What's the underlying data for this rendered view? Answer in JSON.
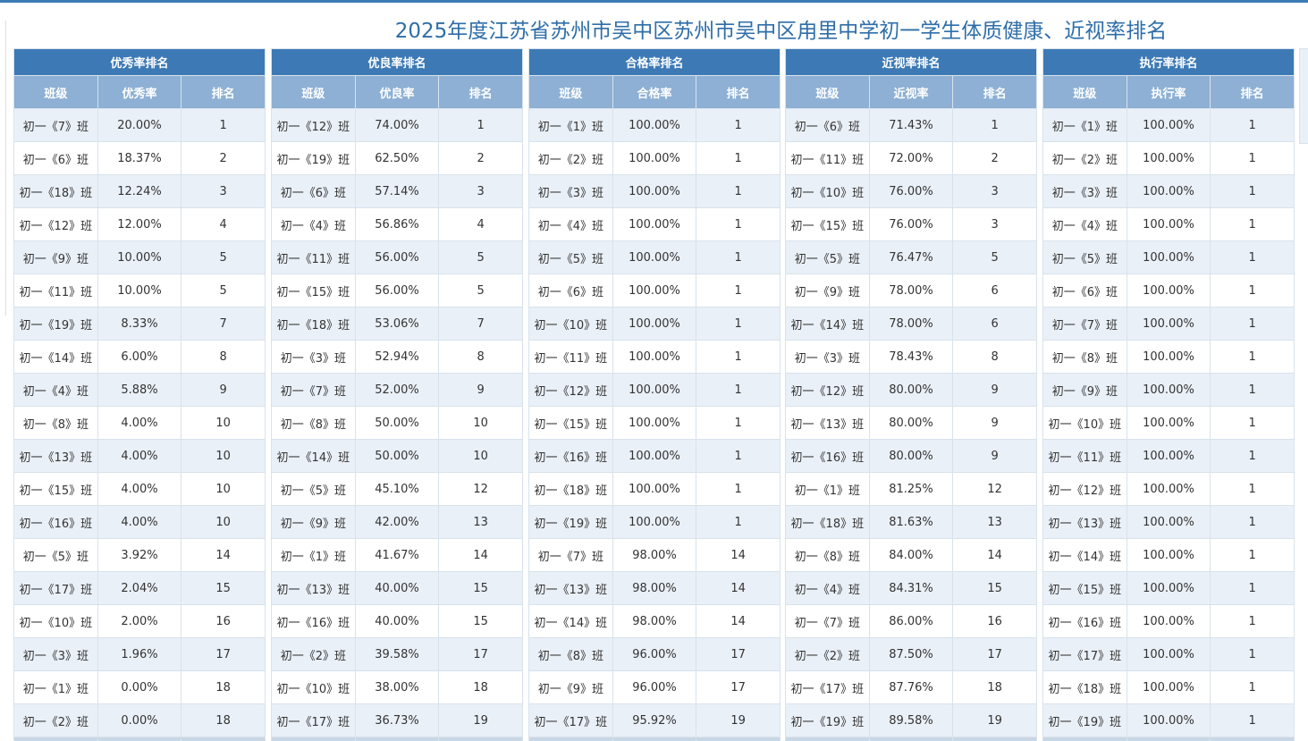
{
  "title": "2025年度江苏省苏州市吴中区苏州市吴中区甪里中学初一学生体质健康、近视率排名",
  "tables": [
    {
      "title": "优秀率排名",
      "headers": [
        "班级",
        "优秀率",
        "排名"
      ],
      "rows": [
        [
          "初一《7》班",
          "20.00%",
          "1"
        ],
        [
          "初一《6》班",
          "18.37%",
          "2"
        ],
        [
          "初一《18》班",
          "12.24%",
          "3"
        ],
        [
          "初一《12》班",
          "12.00%",
          "4"
        ],
        [
          "初一《9》班",
          "10.00%",
          "5"
        ],
        [
          "初一《11》班",
          "10.00%",
          "5"
        ],
        [
          "初一《19》班",
          "8.33%",
          "7"
        ],
        [
          "初一《14》班",
          "6.00%",
          "8"
        ],
        [
          "初一《4》班",
          "5.88%",
          "9"
        ],
        [
          "初一《8》班",
          "4.00%",
          "10"
        ],
        [
          "初一《13》班",
          "4.00%",
          "10"
        ],
        [
          "初一《15》班",
          "4.00%",
          "10"
        ],
        [
          "初一《16》班",
          "4.00%",
          "10"
        ],
        [
          "初一《5》班",
          "3.92%",
          "14"
        ],
        [
          "初一《17》班",
          "2.04%",
          "15"
        ],
        [
          "初一《10》班",
          "2.00%",
          "16"
        ],
        [
          "初一《3》班",
          "1.96%",
          "17"
        ],
        [
          "初一《1》班",
          "0.00%",
          "18"
        ],
        [
          "初一《2》班",
          "0.00%",
          "18"
        ]
      ]
    },
    {
      "title": "优良率排名",
      "headers": [
        "班级",
        "优良率",
        "排名"
      ],
      "rows": [
        [
          "初一《12》班",
          "74.00%",
          "1"
        ],
        [
          "初一《19》班",
          "62.50%",
          "2"
        ],
        [
          "初一《6》班",
          "57.14%",
          "3"
        ],
        [
          "初一《4》班",
          "56.86%",
          "4"
        ],
        [
          "初一《11》班",
          "56.00%",
          "5"
        ],
        [
          "初一《15》班",
          "56.00%",
          "5"
        ],
        [
          "初一《18》班",
          "53.06%",
          "7"
        ],
        [
          "初一《3》班",
          "52.94%",
          "8"
        ],
        [
          "初一《7》班",
          "52.00%",
          "9"
        ],
        [
          "初一《8》班",
          "50.00%",
          "10"
        ],
        [
          "初一《14》班",
          "50.00%",
          "10"
        ],
        [
          "初一《5》班",
          "45.10%",
          "12"
        ],
        [
          "初一《9》班",
          "42.00%",
          "13"
        ],
        [
          "初一《1》班",
          "41.67%",
          "14"
        ],
        [
          "初一《13》班",
          "40.00%",
          "15"
        ],
        [
          "初一《16》班",
          "40.00%",
          "15"
        ],
        [
          "初一《2》班",
          "39.58%",
          "17"
        ],
        [
          "初一《10》班",
          "38.00%",
          "18"
        ],
        [
          "初一《17》班",
          "36.73%",
          "19"
        ]
      ]
    },
    {
      "title": "合格率排名",
      "headers": [
        "班级",
        "合格率",
        "排名"
      ],
      "rows": [
        [
          "初一《1》班",
          "100.00%",
          "1"
        ],
        [
          "初一《2》班",
          "100.00%",
          "1"
        ],
        [
          "初一《3》班",
          "100.00%",
          "1"
        ],
        [
          "初一《4》班",
          "100.00%",
          "1"
        ],
        [
          "初一《5》班",
          "100.00%",
          "1"
        ],
        [
          "初一《6》班",
          "100.00%",
          "1"
        ],
        [
          "初一《10》班",
          "100.00%",
          "1"
        ],
        [
          "初一《11》班",
          "100.00%",
          "1"
        ],
        [
          "初一《12》班",
          "100.00%",
          "1"
        ],
        [
          "初一《15》班",
          "100.00%",
          "1"
        ],
        [
          "初一《16》班",
          "100.00%",
          "1"
        ],
        [
          "初一《18》班",
          "100.00%",
          "1"
        ],
        [
          "初一《19》班",
          "100.00%",
          "1"
        ],
        [
          "初一《7》班",
          "98.00%",
          "14"
        ],
        [
          "初一《13》班",
          "98.00%",
          "14"
        ],
        [
          "初一《14》班",
          "98.00%",
          "14"
        ],
        [
          "初一《8》班",
          "96.00%",
          "17"
        ],
        [
          "初一《9》班",
          "96.00%",
          "17"
        ],
        [
          "初一《17》班",
          "95.92%",
          "19"
        ]
      ]
    },
    {
      "title": "近视率排名",
      "headers": [
        "班级",
        "近视率",
        "排名"
      ],
      "rows": [
        [
          "初一《6》班",
          "71.43%",
          "1"
        ],
        [
          "初一《11》班",
          "72.00%",
          "2"
        ],
        [
          "初一《10》班",
          "76.00%",
          "3"
        ],
        [
          "初一《15》班",
          "76.00%",
          "3"
        ],
        [
          "初一《5》班",
          "76.47%",
          "5"
        ],
        [
          "初一《9》班",
          "78.00%",
          "6"
        ],
        [
          "初一《14》班",
          "78.00%",
          "6"
        ],
        [
          "初一《3》班",
          "78.43%",
          "8"
        ],
        [
          "初一《12》班",
          "80.00%",
          "9"
        ],
        [
          "初一《13》班",
          "80.00%",
          "9"
        ],
        [
          "初一《16》班",
          "80.00%",
          "9"
        ],
        [
          "初一《1》班",
          "81.25%",
          "12"
        ],
        [
          "初一《18》班",
          "81.63%",
          "13"
        ],
        [
          "初一《8》班",
          "84.00%",
          "14"
        ],
        [
          "初一《4》班",
          "84.31%",
          "15"
        ],
        [
          "初一《7》班",
          "86.00%",
          "16"
        ],
        [
          "初一《2》班",
          "87.50%",
          "17"
        ],
        [
          "初一《17》班",
          "87.76%",
          "18"
        ],
        [
          "初一《19》班",
          "89.58%",
          "19"
        ]
      ]
    },
    {
      "title": "执行率排名",
      "headers": [
        "班级",
        "执行率",
        "排名"
      ],
      "rows": [
        [
          "初一《1》班",
          "100.00%",
          "1"
        ],
        [
          "初一《2》班",
          "100.00%",
          "1"
        ],
        [
          "初一《3》班",
          "100.00%",
          "1"
        ],
        [
          "初一《4》班",
          "100.00%",
          "1"
        ],
        [
          "初一《5》班",
          "100.00%",
          "1"
        ],
        [
          "初一《6》班",
          "100.00%",
          "1"
        ],
        [
          "初一《7》班",
          "100.00%",
          "1"
        ],
        [
          "初一《8》班",
          "100.00%",
          "1"
        ],
        [
          "初一《9》班",
          "100.00%",
          "1"
        ],
        [
          "初一《10》班",
          "100.00%",
          "1"
        ],
        [
          "初一《11》班",
          "100.00%",
          "1"
        ],
        [
          "初一《12》班",
          "100.00%",
          "1"
        ],
        [
          "初一《13》班",
          "100.00%",
          "1"
        ],
        [
          "初一《14》班",
          "100.00%",
          "1"
        ],
        [
          "初一《15》班",
          "100.00%",
          "1"
        ],
        [
          "初一《16》班",
          "100.00%",
          "1"
        ],
        [
          "初一《17》班",
          "100.00%",
          "1"
        ],
        [
          "初一《18》班",
          "100.00%",
          "1"
        ],
        [
          "初一《19》班",
          "100.00%",
          "1"
        ]
      ]
    }
  ]
}
